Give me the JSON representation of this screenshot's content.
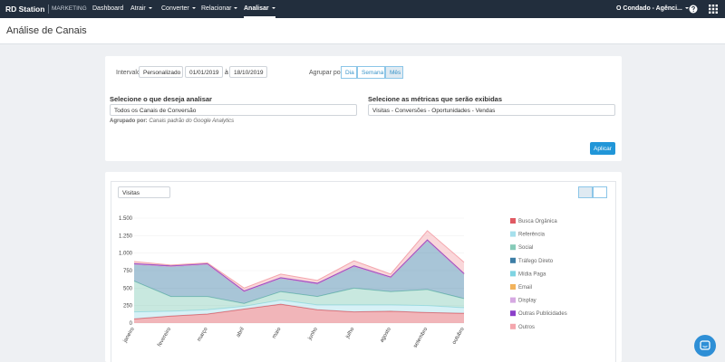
{
  "nav": {
    "brand": "RD Station",
    "product": "MARKETING",
    "items": [
      "Dashboard",
      "Atrair",
      "Converter",
      "Relacionar",
      "Analisar"
    ],
    "account": "O Condado - Agênci..."
  },
  "page_title": "Análise de Canais",
  "filters": {
    "interval_label": "Intervalo",
    "interval_type": "Personalizado",
    "start_date": "01/01/2019",
    "separator": "à",
    "end_date": "18/10/2019",
    "group_label": "Agrupar por",
    "group_options": [
      "Dia",
      "Semana",
      "Mês"
    ],
    "analyze_label": "Selecione o que deseja analisar",
    "analyze_value": "Todos os Canais de Conversão",
    "grouped_by_label": "Agrupado por:",
    "grouped_by_value": "Canais padrão do Google Analytics",
    "metrics_label": "Selecione as métricas que serão exibidas",
    "metrics_value": "Visitas - Conversões - Oportunidades - Vendas",
    "apply": "Aplicar"
  },
  "chart_selector": "Visitas",
  "chart_data": {
    "type": "stacked-area",
    "categories": [
      "janeiro",
      "fevereiro",
      "março",
      "abril",
      "maio",
      "junho",
      "julho",
      "agosto",
      "setembro",
      "outubro"
    ],
    "ylim": [
      0,
      1500
    ],
    "yticks": [
      0,
      250,
      500,
      750,
      {
        "value": 1000,
        "label": "1.000"
      },
      {
        "value": 1250,
        "label": "1.250"
      },
      {
        "value": 1500,
        "label": "1.500"
      }
    ],
    "series": [
      {
        "name": "Busca Orgânica",
        "color": "#e05a63",
        "values": [
          60,
          100,
          130,
          200,
          270,
          190,
          160,
          170,
          150,
          140
        ]
      },
      {
        "name": "Referência",
        "color": "#a6e0ec",
        "values": [
          100,
          70,
          60,
          40,
          60,
          70,
          100,
          90,
          100,
          80
        ]
      },
      {
        "name": "Social",
        "color": "#86cbb8",
        "values": [
          440,
          210,
          190,
          40,
          120,
          120,
          240,
          190,
          230,
          130
        ]
      },
      {
        "name": "Tráfego Direto",
        "color": "#3d7ea6",
        "values": [
          240,
          430,
          460,
          170,
          190,
          180,
          310,
          200,
          700,
          350
        ]
      },
      {
        "name": "Mídia Paga",
        "color": "#7fd4e2",
        "values": [
          0,
          0,
          0,
          0,
          0,
          0,
          0,
          0,
          0,
          0
        ]
      },
      {
        "name": "Email",
        "color": "#f2b35c",
        "values": [
          0,
          0,
          0,
          0,
          0,
          0,
          0,
          0,
          0,
          0
        ]
      },
      {
        "name": "Display",
        "color": "#d6a9e2",
        "values": [
          0,
          0,
          0,
          0,
          0,
          0,
          0,
          0,
          0,
          0
        ]
      },
      {
        "name": "Outras Publicidades",
        "color": "#8b3fc9",
        "values": [
          10,
          10,
          10,
          10,
          10,
          10,
          10,
          10,
          10,
          10
        ]
      },
      {
        "name": "Outros",
        "color": "#f4a6ad",
        "values": [
          30,
          10,
          10,
          40,
          50,
          40,
          70,
          40,
          130,
          160
        ]
      }
    ]
  }
}
